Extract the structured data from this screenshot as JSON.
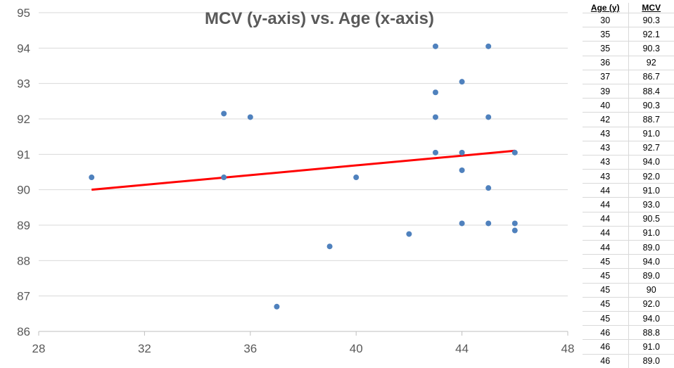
{
  "chart_data": {
    "type": "scatter",
    "title": "MCV (y-axis) vs. Age (x-axis)",
    "xlim": [
      28,
      48
    ],
    "ylim": [
      86,
      95
    ],
    "x_ticks": [
      "28",
      "32",
      "36",
      "40",
      "44",
      "48"
    ],
    "y_ticks": [
      "86",
      "87",
      "88",
      "89",
      "90",
      "91",
      "92",
      "93",
      "94",
      "95"
    ],
    "grid": "horizontal",
    "points": [
      {
        "x": 30,
        "y": 90.35
      },
      {
        "x": 35,
        "y": 92.15
      },
      {
        "x": 35,
        "y": 90.35
      },
      {
        "x": 36,
        "y": 92.05
      },
      {
        "x": 37,
        "y": 86.7
      },
      {
        "x": 39,
        "y": 88.4
      },
      {
        "x": 40,
        "y": 90.35
      },
      {
        "x": 42,
        "y": 88.75
      },
      {
        "x": 43,
        "y": 94.05
      },
      {
        "x": 43,
        "y": 92.75
      },
      {
        "x": 43,
        "y": 92.05
      },
      {
        "x": 43,
        "y": 91.05
      },
      {
        "x": 44,
        "y": 93.05
      },
      {
        "x": 44,
        "y": 91.05
      },
      {
        "x": 44,
        "y": 90.55
      },
      {
        "x": 44,
        "y": 89.05
      },
      {
        "x": 45,
        "y": 94.05
      },
      {
        "x": 45,
        "y": 92.05
      },
      {
        "x": 45,
        "y": 90.05
      },
      {
        "x": 45,
        "y": 89.05
      },
      {
        "x": 46,
        "y": 91.05
      },
      {
        "x": 46,
        "y": 89.05
      },
      {
        "x": 46,
        "y": 88.85
      }
    ],
    "trendline": {
      "x": [
        30,
        46
      ],
      "y": [
        90.0,
        91.1
      ],
      "color": "#ff0000"
    },
    "point_color": "#4f81bd"
  },
  "table": {
    "headers": [
      "Age (y)",
      "MCV"
    ],
    "rows": [
      [
        "30",
        "90.3"
      ],
      [
        "35",
        "92.1"
      ],
      [
        "35",
        "90.3"
      ],
      [
        "36",
        "92"
      ],
      [
        "37",
        "86.7"
      ],
      [
        "39",
        "88.4"
      ],
      [
        "40",
        "90.3"
      ],
      [
        "42",
        "88.7"
      ],
      [
        "43",
        "91.0"
      ],
      [
        "43",
        "92.7"
      ],
      [
        "43",
        "94.0"
      ],
      [
        "43",
        "92.0"
      ],
      [
        "44",
        "91.0"
      ],
      [
        "44",
        "93.0"
      ],
      [
        "44",
        "90.5"
      ],
      [
        "44",
        "91.0"
      ],
      [
        "44",
        "89.0"
      ],
      [
        "45",
        "94.0"
      ],
      [
        "45",
        "89.0"
      ],
      [
        "45",
        "90"
      ],
      [
        "45",
        "92.0"
      ],
      [
        "45",
        "94.0"
      ],
      [
        "46",
        "88.8"
      ],
      [
        "46",
        "91.0"
      ],
      [
        "46",
        "89.0"
      ]
    ]
  }
}
